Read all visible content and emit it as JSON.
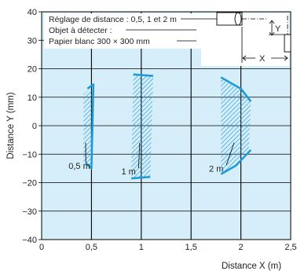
{
  "chart_data": {
    "type": "area",
    "xlabel": "Distance X (m)",
    "ylabel": "Distance Y (mm)",
    "xlim": [
      0,
      2.5
    ],
    "ylim": [
      -40,
      40
    ],
    "x_ticks": [
      "0",
      "0,5",
      "1",
      "1,5",
      "2",
      "2,5"
    ],
    "y_ticks": [
      "40",
      "30",
      "20",
      "10",
      "0",
      "−10",
      "−20",
      "−30",
      "−40"
    ],
    "grid": true,
    "colors": {
      "plot_background": "#d6eef9",
      "pattern": "#2a9fd6",
      "edge": "#1a9ad8",
      "grid": "#000000"
    },
    "info_box": {
      "line1": "Réglage de distance : 0,5, 1 et 2 m",
      "line2": "Objet à détecter :",
      "line3": "Papier blanc 300 × 300 mm"
    },
    "inset": {
      "y_label": "Y",
      "x_label": "X"
    },
    "series": [
      {
        "name": "0,5 m",
        "polygon": [
          [
            0.42,
            11
          ],
          [
            0.52,
            14
          ],
          [
            0.5,
            -15
          ],
          [
            0.42,
            -13
          ]
        ],
        "edge": [
          [
            0.46,
            13
          ],
          [
            0.52,
            14.5
          ],
          [
            0.5,
            -15
          ],
          [
            0.44,
            -13
          ]
        ],
        "label_pos": [
          0.27,
          -14
        ]
      },
      {
        "name": "1 m",
        "polygon": [
          [
            0.92,
            18
          ],
          [
            1.12,
            17.5
          ],
          [
            1.09,
            -18.5
          ],
          [
            0.9,
            -18
          ]
        ],
        "edge_top": [
          [
            0.92,
            18
          ],
          [
            1.12,
            17.5
          ]
        ],
        "edge_bottom": [
          [
            0.9,
            -18.5
          ],
          [
            1.09,
            -18
          ]
        ],
        "label_pos": [
          0.8,
          -16
        ]
      },
      {
        "name": "2 m",
        "polygon": [
          [
            1.8,
            17
          ],
          [
            2.0,
            13
          ],
          [
            2.1,
            8
          ],
          [
            2.08,
            -8
          ],
          [
            1.95,
            -14
          ],
          [
            1.8,
            -17
          ]
        ],
        "edge_top": [
          [
            1.8,
            17
          ],
          [
            2.0,
            13
          ],
          [
            2.1,
            8.5
          ]
        ],
        "edge_bottom": [
          [
            1.8,
            -17
          ],
          [
            1.95,
            -14
          ],
          [
            2.1,
            -8.5
          ]
        ],
        "label_pos": [
          1.68,
          -15
        ]
      }
    ]
  }
}
